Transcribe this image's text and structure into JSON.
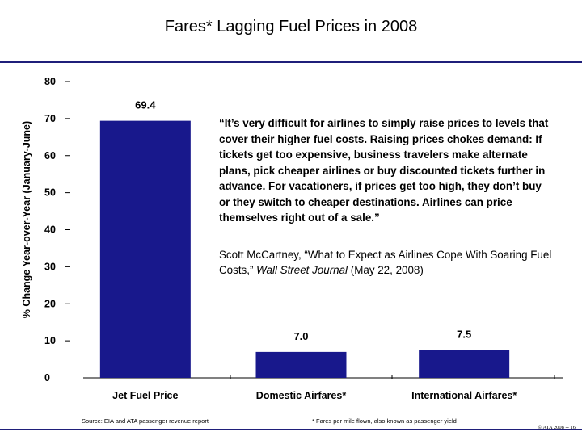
{
  "title": "Fares* Lagging Fuel Prices in 2008",
  "chart_data": {
    "type": "bar",
    "categories": [
      "Jet Fuel Price",
      "Domestic Airfares*",
      "International Airfares*"
    ],
    "values": [
      69.4,
      7.0,
      7.5
    ],
    "value_labels": [
      "69.4",
      "7.0",
      "7.5"
    ],
    "ylabel": "% Change Year-over-Year (January-June)",
    "ylim": [
      0,
      80
    ],
    "yticks": [
      "0",
      "10",
      "20",
      "30",
      "40",
      "50",
      "60",
      "70",
      "80"
    ],
    "bar_color": "#18188c",
    "grid": false
  },
  "quote": "“It’s very difficult for airlines to simply raise prices to levels that cover their higher fuel costs. Raising prices chokes demand: If tickets get too expensive, business travelers make alternate plans, pick cheaper airlines or buy discounted tickets further in advance. For vacationers, if prices get too high, they don’t buy or they switch to cheaper destinations. Airlines can price themselves right out of a sale.”",
  "citation": {
    "before": "Scott McCartney, “What to Expect as Airlines Cope With Soaring Fuel Costs,” ",
    "journal": "Wall Street Journal",
    "after": " (May 22, 2008)"
  },
  "source": "Source: EIA and ATA passenger revenue report",
  "footnote": "* Fares per mile flown, also known as passenger yield",
  "copyright": "© ATA 2008 -- 16",
  "colors": {
    "rule": "#1f1f7a"
  }
}
